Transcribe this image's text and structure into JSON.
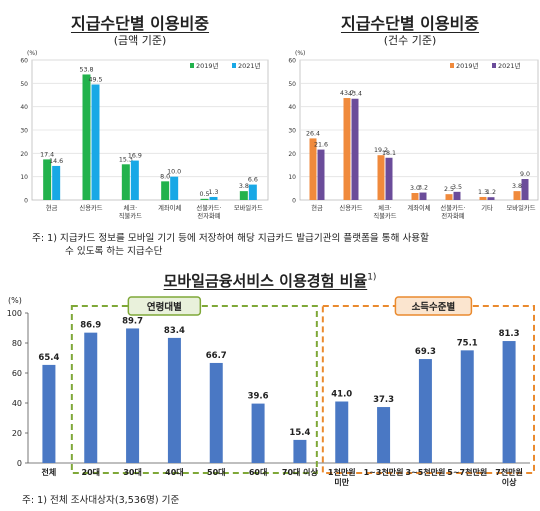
{
  "chart_data": [
    {
      "type": "bar",
      "title": "지급수단별 이용비중",
      "subtitle": "(금액 기준)",
      "yunit": "(%)",
      "ylim": [
        0,
        60
      ],
      "yticks": [
        0,
        10,
        20,
        30,
        40,
        50,
        60
      ],
      "grid": true,
      "legend": "top-right",
      "categories": [
        "현금",
        "신용카드",
        "체크·직불카드",
        "계좌이체",
        "선불카드·전자화폐",
        "모바일카드"
      ],
      "series": [
        {
          "name": "2019년",
          "color": "#22b24c",
          "values": [
            17.4,
            53.8,
            15.3,
            8.0,
            0.5,
            3.8
          ]
        },
        {
          "name": "2021년",
          "color": "#18a8e6",
          "values": [
            14.6,
            49.5,
            16.9,
            10.0,
            1.3,
            6.6
          ]
        }
      ]
    },
    {
      "type": "bar",
      "title": "지급수단별 이용비중",
      "subtitle": "(건수 기준)",
      "yunit": "(%)",
      "ylim": [
        0,
        60
      ],
      "yticks": [
        0,
        10,
        20,
        30,
        40,
        50,
        60
      ],
      "grid": true,
      "legend": "top-right",
      "categories": [
        "현금",
        "신용카드",
        "체크·직불카드",
        "계좌이체",
        "선불카드·전자화폐",
        "기타",
        "모바일카드"
      ],
      "series": [
        {
          "name": "2019년",
          "color": "#f08a3c",
          "values": [
            26.4,
            43.7,
            19.2,
            3.0,
            2.5,
            1.3,
            3.8
          ]
        },
        {
          "name": "2021년",
          "color": "#6b4c9a",
          "values": [
            21.6,
            43.4,
            18.1,
            3.2,
            3.5,
            1.2,
            9.0
          ]
        }
      ]
    },
    {
      "type": "bar",
      "title": "모바일금융서비스 이용경험 비율",
      "title_sup": "1)",
      "yunit": "(%)",
      "ylim": [
        0,
        100
      ],
      "yticks": [
        0,
        20,
        40,
        60,
        80,
        100
      ],
      "grid": false,
      "categories": [
        "전체",
        "20대",
        "30대",
        "40대",
        "50대",
        "60대",
        "70대 이상",
        "1천만원 미만",
        "1~3천만원",
        "3~5천만원",
        "5~7천만원",
        "7천만원 이상"
      ],
      "series": [
        {
          "name": "",
          "color": "#4a78c4",
          "values": [
            65.4,
            86.9,
            89.7,
            83.4,
            66.7,
            39.6,
            15.4,
            41.0,
            37.3,
            69.3,
            75.1,
            81.3
          ]
        }
      ],
      "groups": [
        {
          "label": "연령대별",
          "color": "#7fa838",
          "label_bg": "#e9f1db"
        },
        {
          "label": "소득수준별",
          "color": "#ea8a2e",
          "label_bg": "#fbe5cf"
        }
      ]
    }
  ],
  "notes": {
    "top": "주: 1) 지급카드 정보를 모바일 기기 등에 저장하여 해당 지급카드 발급기관의 플랫폼을 통해 사용할",
    "top2": "수 있도록 하는 지급수단",
    "bottom": "주: 1) 전체 조사대상자(3,536명) 기준"
  }
}
